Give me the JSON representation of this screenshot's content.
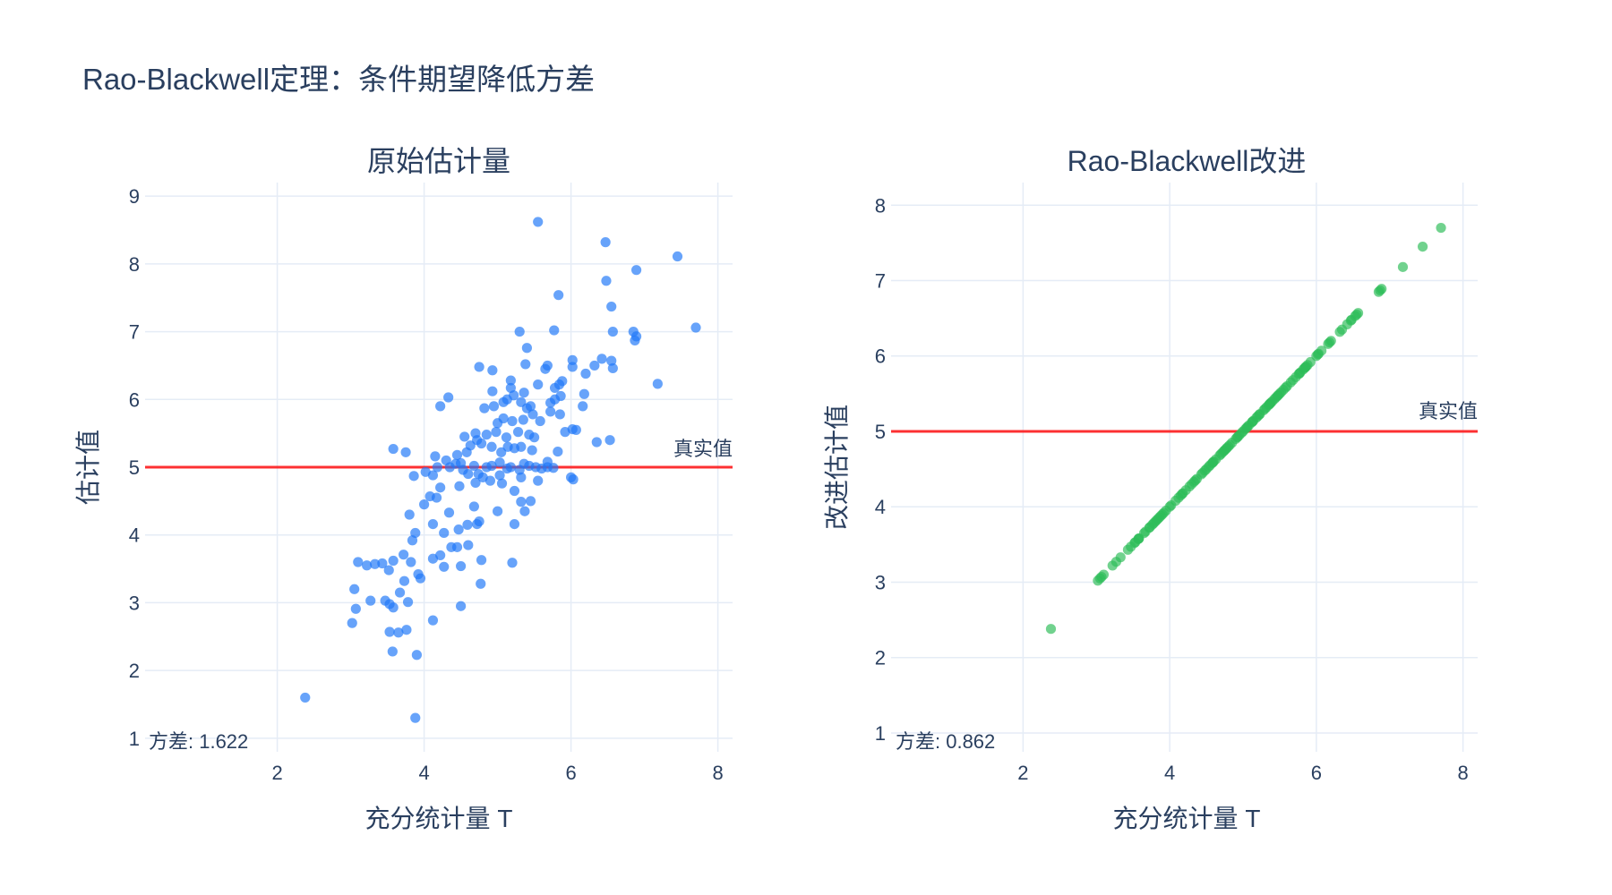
{
  "title": "Rao-Blackwell定理：条件期望降低方差",
  "colors": {
    "text": "#2a3f5f",
    "grid": "#e5ecf6",
    "reference": "#ff0000",
    "series_left": "#1f77f7",
    "series_right": "#2ebd59"
  },
  "chart_data": [
    {
      "type": "scatter",
      "title": "原始估计量",
      "xlabel": "充分统计量 T",
      "ylabel": "估计值",
      "xlim": [
        0.2,
        8.2
      ],
      "ylim": [
        0.8,
        9.2
      ],
      "xticks": [
        2,
        4,
        6,
        8
      ],
      "yticks": [
        1,
        2,
        3,
        4,
        5,
        6,
        7,
        8,
        9
      ],
      "grid": true,
      "reference_line": {
        "y": 5,
        "label": "真实值"
      },
      "variance_label": "方差: 1.622",
      "color": "#1f77f7",
      "points": [
        [
          2.38,
          1.6
        ],
        [
          3.88,
          1.3
        ],
        [
          3.9,
          2.23
        ],
        [
          3.57,
          2.28
        ],
        [
          3.76,
          2.6
        ],
        [
          3.53,
          2.57
        ],
        [
          3.65,
          2.56
        ],
        [
          4.12,
          2.74
        ],
        [
          3.02,
          2.7
        ],
        [
          3.07,
          2.91
        ],
        [
          3.27,
          3.03
        ],
        [
          3.47,
          3.03
        ],
        [
          3.53,
          2.98
        ],
        [
          3.58,
          2.93
        ],
        [
          3.78,
          3.01
        ],
        [
          3.67,
          3.15
        ],
        [
          3.05,
          3.2
        ],
        [
          3.33,
          3.57
        ],
        [
          3.43,
          3.58
        ],
        [
          3.1,
          3.6
        ],
        [
          3.22,
          3.55
        ],
        [
          3.52,
          3.48
        ],
        [
          3.58,
          3.62
        ],
        [
          3.73,
          3.32
        ],
        [
          3.82,
          3.6
        ],
        [
          3.92,
          3.42
        ],
        [
          3.95,
          3.36
        ],
        [
          3.72,
          3.71
        ],
        [
          4.5,
          2.95
        ],
        [
          4.77,
          3.28
        ],
        [
          5.2,
          3.59
        ],
        [
          4.12,
          3.65
        ],
        [
          4.22,
          3.7
        ],
        [
          4.27,
          3.53
        ],
        [
          4.37,
          3.82
        ],
        [
          4.45,
          3.82
        ],
        [
          4.5,
          3.54
        ],
        [
          4.6,
          3.85
        ],
        [
          4.78,
          3.63
        ],
        [
          3.84,
          3.92
        ],
        [
          3.88,
          4.03
        ],
        [
          3.8,
          4.3
        ],
        [
          4.12,
          4.16
        ],
        [
          4.27,
          4.03
        ],
        [
          4.34,
          4.33
        ],
        [
          4.47,
          4.08
        ],
        [
          4.59,
          4.15
        ],
        [
          4.72,
          4.16
        ],
        [
          4.75,
          4.2
        ],
        [
          4.68,
          4.42
        ],
        [
          5.23,
          4.16
        ],
        [
          5.37,
          4.35
        ],
        [
          5.32,
          4.49
        ],
        [
          5.45,
          4.5
        ],
        [
          5.0,
          4.35
        ],
        [
          4.0,
          4.45
        ],
        [
          4.08,
          4.57
        ],
        [
          4.17,
          4.55
        ],
        [
          4.22,
          4.7
        ],
        [
          4.48,
          4.72
        ],
        [
          4.7,
          4.77
        ],
        [
          4.74,
          4.9
        ],
        [
          4.8,
          4.85
        ],
        [
          4.9,
          4.8
        ],
        [
          5.06,
          4.76
        ],
        [
          5.23,
          4.65
        ],
        [
          5.32,
          4.85
        ],
        [
          5.03,
          4.88
        ],
        [
          3.86,
          4.87
        ],
        [
          4.02,
          4.93
        ],
        [
          4.12,
          4.88
        ],
        [
          4.18,
          5.0
        ],
        [
          4.35,
          5.0
        ],
        [
          4.43,
          5.05
        ],
        [
          4.5,
          5.06
        ],
        [
          4.53,
          4.96
        ],
        [
          4.6,
          4.9
        ],
        [
          4.68,
          5.02
        ],
        [
          4.85,
          5.0
        ],
        [
          4.92,
          5.02
        ],
        [
          5.03,
          5.07
        ],
        [
          5.13,
          4.98
        ],
        [
          5.18,
          5.0
        ],
        [
          5.3,
          4.96
        ],
        [
          5.36,
          5.05
        ],
        [
          5.43,
          5.02
        ],
        [
          5.52,
          5.0
        ],
        [
          5.6,
          4.98
        ],
        [
          5.68,
          5.0
        ],
        [
          5.76,
          4.99
        ],
        [
          6.0,
          4.85
        ],
        [
          6.03,
          4.82
        ],
        [
          5.55,
          4.8
        ],
        [
          5.68,
          5.08
        ],
        [
          4.15,
          5.16
        ],
        [
          4.3,
          5.1
        ],
        [
          4.45,
          5.18
        ],
        [
          4.58,
          5.22
        ],
        [
          4.63,
          5.32
        ],
        [
          4.72,
          5.4
        ],
        [
          4.78,
          5.35
        ],
        [
          4.92,
          5.3
        ],
        [
          5.05,
          5.22
        ],
        [
          5.14,
          5.3
        ],
        [
          5.23,
          5.28
        ],
        [
          5.32,
          5.3
        ],
        [
          5.47,
          5.25
        ],
        [
          5.82,
          5.23
        ],
        [
          3.58,
          5.27
        ],
        [
          3.75,
          5.22
        ],
        [
          4.55,
          5.45
        ],
        [
          4.7,
          5.5
        ],
        [
          4.85,
          5.48
        ],
        [
          4.98,
          5.52
        ],
        [
          5.12,
          5.44
        ],
        [
          5.28,
          5.52
        ],
        [
          5.43,
          5.48
        ],
        [
          5.5,
          5.44
        ],
        [
          5.92,
          5.52
        ],
        [
          6.02,
          5.56
        ],
        [
          6.07,
          5.55
        ],
        [
          6.35,
          5.37
        ],
        [
          6.53,
          5.4
        ],
        [
          5.0,
          5.65
        ],
        [
          5.08,
          5.72
        ],
        [
          5.2,
          5.68
        ],
        [
          5.35,
          5.7
        ],
        [
          5.48,
          5.78
        ],
        [
          5.58,
          5.68
        ],
        [
          5.72,
          5.82
        ],
        [
          5.85,
          5.78
        ],
        [
          6.16,
          5.9
        ],
        [
          4.22,
          5.9
        ],
        [
          4.33,
          6.03
        ],
        [
          4.82,
          5.87
        ],
        [
          4.95,
          5.9
        ],
        [
          5.08,
          5.96
        ],
        [
          5.13,
          6.0
        ],
        [
          5.22,
          6.06
        ],
        [
          5.32,
          5.96
        ],
        [
          5.4,
          5.87
        ],
        [
          5.45,
          5.9
        ],
        [
          5.72,
          5.95
        ],
        [
          5.78,
          6.0
        ],
        [
          5.86,
          6.05
        ],
        [
          6.18,
          6.08
        ],
        [
          7.18,
          6.23
        ],
        [
          4.93,
          6.12
        ],
        [
          5.18,
          6.17
        ],
        [
          5.36,
          6.1
        ],
        [
          5.55,
          6.22
        ],
        [
          5.78,
          6.17
        ],
        [
          5.84,
          6.22
        ],
        [
          5.88,
          6.27
        ],
        [
          6.02,
          6.48
        ],
        [
          4.75,
          6.48
        ],
        [
          4.93,
          6.43
        ],
        [
          5.18,
          6.28
        ],
        [
          5.38,
          6.52
        ],
        [
          5.65,
          6.45
        ],
        [
          5.68,
          6.5
        ],
        [
          6.02,
          6.58
        ],
        [
          6.32,
          6.5
        ],
        [
          6.42,
          6.6
        ],
        [
          6.55,
          6.57
        ],
        [
          6.57,
          6.46
        ],
        [
          6.2,
          6.38
        ],
        [
          5.4,
          6.76
        ],
        [
          5.3,
          7.0
        ],
        [
          5.77,
          7.02
        ],
        [
          6.57,
          7.0
        ],
        [
          6.85,
          7.0
        ],
        [
          6.87,
          6.87
        ],
        [
          6.89,
          6.93
        ],
        [
          7.7,
          7.06
        ],
        [
          6.55,
          7.37
        ],
        [
          6.48,
          7.75
        ],
        [
          5.83,
          7.54
        ],
        [
          6.89,
          7.91
        ],
        [
          7.45,
          8.11
        ],
        [
          6.47,
          8.32
        ],
        [
          5.55,
          8.62
        ]
      ]
    },
    {
      "type": "scatter",
      "title": "Rao-Blackwell改进",
      "xlabel": "充分统计量 T",
      "ylabel": "改进估计值",
      "xlim": [
        0.2,
        8.2
      ],
      "ylim": [
        0.75,
        8.3
      ],
      "xticks": [
        2,
        4,
        6,
        8
      ],
      "yticks": [
        1,
        2,
        3,
        4,
        5,
        6,
        7,
        8
      ],
      "grid": true,
      "reference_line": {
        "y": 5,
        "label": "真实值"
      },
      "variance_label": "方差: 0.862",
      "color": "#2ebd59",
      "relation": "y = x",
      "x": [
        2.38,
        3.02,
        3.05,
        3.07,
        3.1,
        3.22,
        3.27,
        3.33,
        3.43,
        3.47,
        3.52,
        3.53,
        3.57,
        3.58,
        3.58,
        3.65,
        3.67,
        3.72,
        3.73,
        3.76,
        3.78,
        3.8,
        3.82,
        3.84,
        3.86,
        3.88,
        3.9,
        3.92,
        3.95,
        4.0,
        4.02,
        4.08,
        4.12,
        4.15,
        4.17,
        4.18,
        4.22,
        4.27,
        4.3,
        4.33,
        4.35,
        4.37,
        4.43,
        4.45,
        4.48,
        4.5,
        4.53,
        4.55,
        4.58,
        4.59,
        4.6,
        4.63,
        4.68,
        4.7,
        4.72,
        4.74,
        4.75,
        4.77,
        4.78,
        4.8,
        4.82,
        4.85,
        4.9,
        4.92,
        4.93,
        4.95,
        4.98,
        5.0,
        5.03,
        5.05,
        5.06,
        5.08,
        5.12,
        5.13,
        5.14,
        5.18,
        5.2,
        5.22,
        5.23,
        5.28,
        5.3,
        5.32,
        5.35,
        5.36,
        5.37,
        5.38,
        5.4,
        5.43,
        5.45,
        5.47,
        5.48,
        5.5,
        5.52,
        5.55,
        5.58,
        5.6,
        5.65,
        5.68,
        5.72,
        5.76,
        5.77,
        5.78,
        5.82,
        5.84,
        5.85,
        5.86,
        5.88,
        5.92,
        6.0,
        6.02,
        6.03,
        6.07,
        6.16,
        6.18,
        6.2,
        6.32,
        6.35,
        6.42,
        6.47,
        6.48,
        6.53,
        6.55,
        6.57,
        6.85,
        6.87,
        6.89,
        7.18,
        7.45,
        7.7
      ]
    }
  ]
}
